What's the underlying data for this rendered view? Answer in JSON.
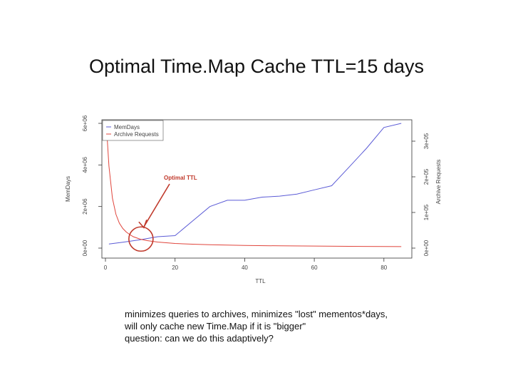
{
  "slide": {
    "title": "Optimal Time.Map Cache TTL=15 days",
    "notes": [
      "minimizes queries to archives, minimizes \"lost\" mementos*days,",
      "will only cache new Time.Map if it is \"bigger\"",
      "question: can we do this adaptively?"
    ]
  },
  "chart_data": {
    "type": "line",
    "xlabel": "TTL",
    "ylabel_left": "MemDays",
    "ylabel_right": "Archive Requests",
    "xlim": [
      0,
      87
    ],
    "ylim_left": [
      0,
      6000000
    ],
    "ylim_right": [
      0,
      350000
    ],
    "x_ticks": [
      0,
      20,
      40,
      60,
      80
    ],
    "x_tick_labels": [
      "0",
      "20",
      "40",
      "60",
      "80"
    ],
    "y_left_ticks": [
      0,
      2000000,
      4000000,
      6000000
    ],
    "y_left_tick_labels": [
      "0e+00",
      "2e+06",
      "4e+06",
      "6e+06"
    ],
    "y_right_ticks": [
      0,
      100000,
      200000,
      300000
    ],
    "y_right_tick_labels": [
      "0e+00",
      "1e+05",
      "2e+05",
      "3e+05"
    ],
    "grid": false,
    "legend_position": "top-left",
    "series": [
      {
        "name": "MemDays",
        "axis": "left",
        "color": "#5b5bd6",
        "x": [
          1,
          5,
          10,
          15,
          20,
          25,
          30,
          35,
          40,
          45,
          50,
          55,
          60,
          65,
          70,
          75,
          80,
          85
        ],
        "values": [
          200000,
          280000,
          400000,
          550000,
          600000,
          1300000,
          2000000,
          2300000,
          2300000,
          2450000,
          2500000,
          2600000,
          2800000,
          3000000,
          3900000,
          4800000,
          5800000,
          6000000
        ]
      },
      {
        "name": "Archive Requests",
        "axis": "right",
        "color": "#e0453c",
        "x": [
          0.5,
          1,
          2,
          3,
          4,
          5,
          6,
          7,
          8,
          10,
          12,
          15,
          20,
          25,
          30,
          40,
          50,
          60,
          70,
          80,
          85
        ],
        "values": [
          310000,
          230000,
          140000,
          95000,
          70000,
          55000,
          45000,
          38000,
          32000,
          25000,
          21000,
          17000,
          13000,
          11000,
          9500,
          7500,
          6500,
          5800,
          5000,
          4500,
          4200
        ]
      }
    ],
    "annotation": {
      "text": "Optimal TTL",
      "color": "#c0392b",
      "point": [
        10,
        300000
      ]
    }
  }
}
